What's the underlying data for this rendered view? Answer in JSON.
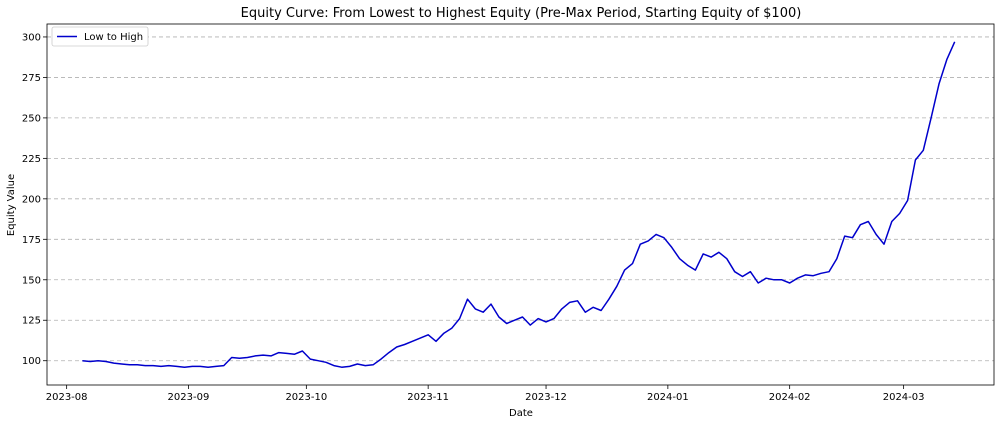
{
  "chart_data": {
    "type": "line",
    "title": "Equity Curve: From Lowest to Highest Equity (Pre-Max Period, Starting Equity of $100)",
    "xlabel": "Date",
    "ylabel": "Equity Value",
    "xlim": [
      "2023-07-27",
      "2024-03-24"
    ],
    "ylim": [
      85,
      308
    ],
    "yticks": [
      100,
      125,
      150,
      175,
      200,
      225,
      250,
      275,
      300
    ],
    "xticks": [
      "2023-08",
      "2023-09",
      "2023-10",
      "2023-11",
      "2023-12",
      "2024-01",
      "2024-02",
      "2024-03"
    ],
    "xtick_dates": [
      "2023-08-01",
      "2023-09-01",
      "2023-10-01",
      "2023-11-01",
      "2023-12-01",
      "2024-01-01",
      "2024-02-01",
      "2024-03-01"
    ],
    "grid": "y-dashed",
    "legend_position": "top-left",
    "colors": {
      "line": "#0000cc",
      "grid": "#b0b0b0"
    },
    "series": [
      {
        "name": "Low to High",
        "color": "#0000cc",
        "x": [
          "2023-08-05",
          "2023-08-07",
          "2023-08-09",
          "2023-08-11",
          "2023-08-13",
          "2023-08-15",
          "2023-08-17",
          "2023-08-19",
          "2023-08-21",
          "2023-08-23",
          "2023-08-25",
          "2023-08-27",
          "2023-08-29",
          "2023-08-31",
          "2023-09-02",
          "2023-09-04",
          "2023-09-06",
          "2023-09-08",
          "2023-09-10",
          "2023-09-12",
          "2023-09-14",
          "2023-09-16",
          "2023-09-18",
          "2023-09-20",
          "2023-09-22",
          "2023-09-24",
          "2023-09-26",
          "2023-09-28",
          "2023-09-30",
          "2023-10-02",
          "2023-10-04",
          "2023-10-06",
          "2023-10-08",
          "2023-10-10",
          "2023-10-12",
          "2023-10-14",
          "2023-10-16",
          "2023-10-18",
          "2023-10-20",
          "2023-10-22",
          "2023-10-24",
          "2023-10-26",
          "2023-10-28",
          "2023-10-30",
          "2023-11-01",
          "2023-11-03",
          "2023-11-05",
          "2023-11-07",
          "2023-11-09",
          "2023-11-11",
          "2023-11-13",
          "2023-11-15",
          "2023-11-17",
          "2023-11-19",
          "2023-11-21",
          "2023-11-23",
          "2023-11-25",
          "2023-11-27",
          "2023-11-29",
          "2023-12-01",
          "2023-12-03",
          "2023-12-05",
          "2023-12-07",
          "2023-12-09",
          "2023-12-11",
          "2023-12-13",
          "2023-12-15",
          "2023-12-17",
          "2023-12-19",
          "2023-12-21",
          "2023-12-23",
          "2023-12-25",
          "2023-12-27",
          "2023-12-29",
          "2023-12-31",
          "2024-01-02",
          "2024-01-04",
          "2024-01-06",
          "2024-01-08",
          "2024-01-10",
          "2024-01-12",
          "2024-01-14",
          "2024-01-16",
          "2024-01-18",
          "2024-01-20",
          "2024-01-22",
          "2024-01-24",
          "2024-01-26",
          "2024-01-28",
          "2024-01-30",
          "2024-02-01",
          "2024-02-03",
          "2024-02-05",
          "2024-02-07",
          "2024-02-09",
          "2024-02-11",
          "2024-02-13",
          "2024-02-15",
          "2024-02-17",
          "2024-02-19",
          "2024-02-21",
          "2024-02-23",
          "2024-02-25",
          "2024-02-27",
          "2024-02-29",
          "2024-03-02",
          "2024-03-04",
          "2024-03-06",
          "2024-03-08",
          "2024-03-10",
          "2024-03-12",
          "2024-03-14"
        ],
        "values": [
          100,
          99.5,
          100,
          99.5,
          98.5,
          98,
          97.5,
          97.5,
          97,
          97,
          96.5,
          97,
          96.5,
          96,
          96.5,
          96.5,
          96,
          96.5,
          97,
          102,
          101.5,
          102,
          103,
          103.5,
          103,
          105,
          104.5,
          104,
          106,
          101,
          100,
          99,
          97,
          96,
          96.5,
          98,
          97,
          97.5,
          101,
          105,
          108.5,
          110,
          112,
          114,
          116,
          112,
          117,
          120,
          126,
          138,
          132,
          130,
          135,
          127,
          123,
          125,
          127,
          122,
          126,
          124,
          126,
          132,
          136,
          137,
          130,
          133,
          131,
          138,
          146,
          156,
          160,
          172,
          174,
          178,
          176,
          170,
          163,
          159,
          156,
          166,
          164,
          167,
          163,
          155,
          152,
          155,
          148,
          151,
          150,
          150,
          148,
          151,
          153,
          152.5,
          154,
          155,
          163,
          177,
          176,
          184,
          186,
          178,
          172,
          186,
          191,
          199,
          224,
          230,
          250,
          271,
          286,
          297
        ]
      }
    ]
  }
}
